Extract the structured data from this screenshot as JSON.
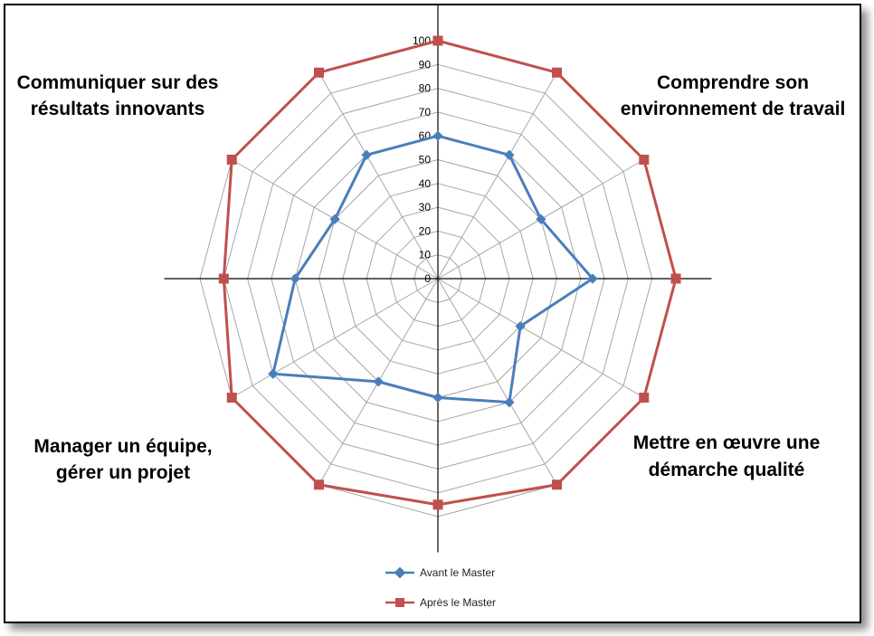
{
  "chart_data": {
    "type": "radar",
    "axes_count": 12,
    "r_ticks": [
      "0",
      "10",
      "20",
      "30",
      "40",
      "50",
      "60",
      "70",
      "80",
      "90",
      "100"
    ],
    "r_range": [
      0,
      100
    ],
    "grid": true,
    "quadrant_labels": {
      "top_left": [
        "Communiquer sur des",
        "résultats innovants"
      ],
      "top_right": [
        "Comprendre son",
        "environnement de travail"
      ],
      "bottom_right": [
        "Mettre en œuvre une",
        "démarche qualité"
      ],
      "bottom_left": [
        "Manager un équipe,",
        "gérer un projet"
      ]
    },
    "legend_position": "bottom",
    "series": [
      {
        "name": "Avant le Master",
        "color": "#4a7ebb",
        "marker": "diamond",
        "values": [
          60,
          60,
          50,
          65,
          40,
          60,
          50,
          50,
          80,
          60,
          50,
          60
        ]
      },
      {
        "name": "Après le Master",
        "color": "#c0504d",
        "marker": "square",
        "values": [
          100,
          100,
          100,
          100,
          100,
          100,
          95,
          100,
          100,
          90,
          100,
          100
        ]
      }
    ]
  }
}
